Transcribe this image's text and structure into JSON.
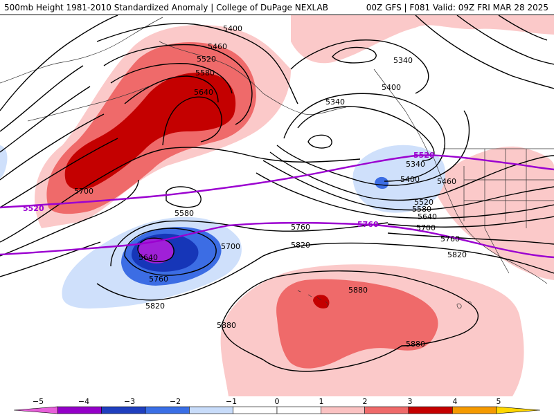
{
  "header": {
    "title_left": "500mb Height 1981-2010 Standardized Anomaly | College of DuPage NEXLAB",
    "title_right": "00Z GFS | F081 Valid: 09Z FRI MAR 28 2025"
  },
  "contour_labels": [
    {
      "id": "label-5400-nw",
      "text": "5400"
    },
    {
      "id": "label-5460-nw",
      "text": "5460"
    },
    {
      "id": "label-5520-nw",
      "text": "5520"
    },
    {
      "id": "label-5580-nw",
      "text": "5580"
    },
    {
      "id": "label-5640-nw",
      "text": "5640"
    },
    {
      "id": "label-5700-w",
      "text": "5700"
    },
    {
      "id": "label-5580-c",
      "text": "5580"
    },
    {
      "id": "label-5640-low",
      "text": "5640"
    },
    {
      "id": "label-5700-low",
      "text": "5700"
    },
    {
      "id": "label-5760-low",
      "text": "5760"
    },
    {
      "id": "label-5820-sw",
      "text": "5820"
    },
    {
      "id": "label-5340-ne",
      "text": "5340"
    },
    {
      "id": "label-5400-ne",
      "text": "5400"
    },
    {
      "id": "label-5340-e",
      "text": "5340"
    },
    {
      "id": "label-5340-e2",
      "text": "5340"
    },
    {
      "id": "label-5400-e",
      "text": "5400"
    },
    {
      "id": "label-5460-e",
      "text": "5460"
    },
    {
      "id": "label-5520-e",
      "text": "5520"
    },
    {
      "id": "label-5580-e",
      "text": "5580"
    },
    {
      "id": "label-5640-e",
      "text": "5640"
    },
    {
      "id": "label-5700-e",
      "text": "5700"
    },
    {
      "id": "label-5760-e",
      "text": "5760"
    },
    {
      "id": "label-5760-c",
      "text": "5760"
    },
    {
      "id": "label-5820-c",
      "text": "5820"
    },
    {
      "id": "label-5820-e",
      "text": "5820"
    },
    {
      "id": "label-5880-hi1",
      "text": "5880"
    },
    {
      "id": "label-5880-hi2",
      "text": "5880"
    },
    {
      "id": "label-5880-sw",
      "text": "5880"
    }
  ],
  "climo_labels": [
    {
      "id": "climo-5520-west",
      "text": "5520"
    },
    {
      "id": "climo-5520-east",
      "text": "5520"
    },
    {
      "id": "climo-5760",
      "text": "5760"
    }
  ],
  "colorbar": {
    "ticks": [
      "−5",
      "−4",
      "−3",
      "−2",
      "−1",
      "0",
      "1",
      "2",
      "3",
      "4",
      "5"
    ],
    "colors": [
      "#e75fd9",
      "#9400c8",
      "#1f3fbf",
      "#3a6fe6",
      "#c8dcfa",
      "#ffffff",
      "#ffffff",
      "#fbc2c2",
      "#ef6a6a",
      "#c40000",
      "#f59a00",
      "#ffd700"
    ]
  },
  "colors": {
    "anomaly_pos_1": "#fbc9c9",
    "anomaly_pos_2": "#ef6a6a",
    "anomaly_pos_3": "#c40000",
    "anomaly_neg_1": "#cfe0fb",
    "anomaly_neg_2": "#3c6de4",
    "anomaly_neg_3": "#1636b8",
    "anomaly_neg_4": "#a020d8",
    "climo_line": "#9b00d0",
    "contour_line": "#000000"
  }
}
